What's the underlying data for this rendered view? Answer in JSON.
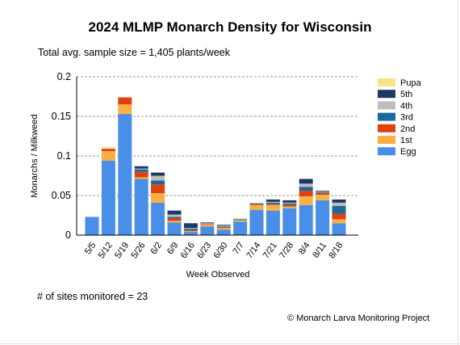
{
  "chart_data": {
    "type": "bar",
    "stacked": true,
    "title": "2024 MLMP Monarch Density for Wisconsin",
    "subtitle": "Total avg. sample size = 1,405 plants/week",
    "xlabel": "Week Observed",
    "ylabel": "Monarchs / Milkweed",
    "ylim": [
      0,
      0.2
    ],
    "yticks": [
      "0",
      "0.05",
      "0.1",
      "0.15",
      "0.2"
    ],
    "grid": true,
    "legend_position": "right",
    "categories": [
      "5/5",
      "5/12",
      "5/19",
      "5/26",
      "6/2",
      "6/9",
      "6/16",
      "6/23",
      "6/30",
      "7/7",
      "7/14",
      "7/21",
      "7/28",
      "8/4",
      "8/11",
      "8/18"
    ],
    "series": [
      {
        "name": "Egg",
        "color": "#4a8fe7",
        "values": [
          0.023,
          0.094,
          0.153,
          0.071,
          0.041,
          0.016,
          0.004,
          0.011,
          0.007,
          0.017,
          0.032,
          0.031,
          0.034,
          0.038,
          0.044,
          0.015
        ]
      },
      {
        "name": "1st",
        "color": "#f9b042",
        "values": [
          0,
          0.012,
          0.012,
          0.002,
          0.012,
          0.002,
          0.001,
          0.002,
          0.002,
          0.002,
          0.006,
          0.007,
          0.002,
          0.011,
          0.007,
          0.005
        ]
      },
      {
        "name": "2nd",
        "color": "#e0420e",
        "values": [
          0,
          0.003,
          0.009,
          0.007,
          0.011,
          0.003,
          0.001,
          0.001,
          0.001,
          0,
          0.001,
          0.001,
          0.002,
          0.007,
          0.002,
          0.007
        ]
      },
      {
        "name": "3rd",
        "color": "#1b6a9c",
        "values": [
          0,
          0,
          0,
          0.003,
          0.005,
          0.002,
          0.002,
          0,
          0.001,
          0.001,
          0.001,
          0.002,
          0.002,
          0.005,
          0.001,
          0.01
        ]
      },
      {
        "name": "4th",
        "color": "#bdbdbd",
        "values": [
          0,
          0,
          0,
          0.001,
          0.006,
          0.003,
          0.001,
          0.001,
          0.001,
          0.001,
          0.001,
          0.001,
          0.001,
          0.004,
          0.001,
          0.004
        ]
      },
      {
        "name": "5th",
        "color": "#1f3864",
        "values": [
          0,
          0,
          0,
          0.003,
          0.004,
          0.005,
          0.006,
          0.001,
          0.001,
          0,
          0,
          0.003,
          0.003,
          0.006,
          0.001,
          0.004
        ]
      },
      {
        "name": "Pupa",
        "color": "#fbe18a",
        "values": [
          0,
          0.002,
          0,
          0,
          0,
          0,
          0,
          0,
          0,
          0,
          0,
          0,
          0,
          0,
          0,
          0
        ]
      }
    ]
  },
  "footer": {
    "sites_text": "# of sites monitored = 23",
    "copyright_text": "© Monarch Larva Monitoring Project"
  }
}
